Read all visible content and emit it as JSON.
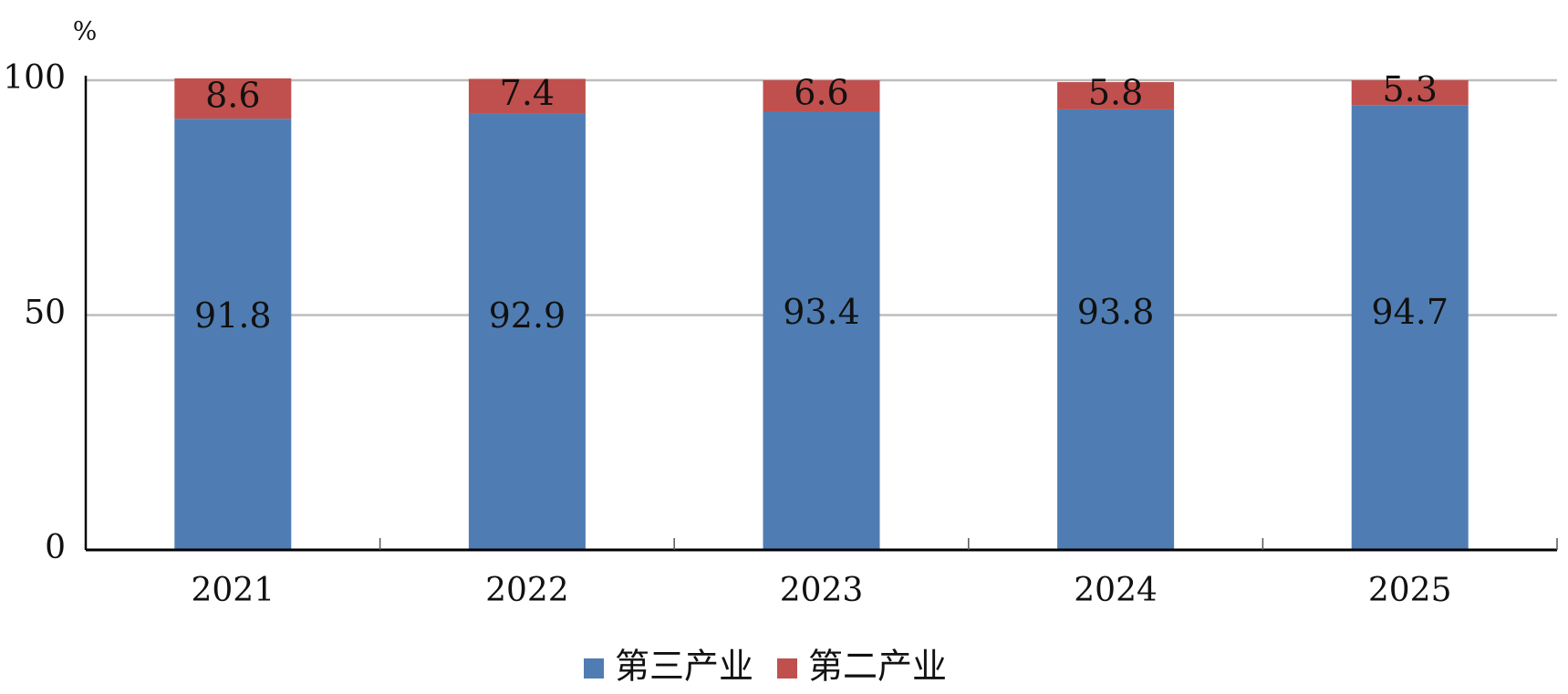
{
  "chart_data": {
    "type": "stacked_bar",
    "unit": "%",
    "categories": [
      "2021",
      "2022",
      "2023",
      "2024",
      "2025"
    ],
    "series": [
      {
        "name": "第三产业",
        "color": "#4f7db3",
        "values": [
          91.8,
          92.9,
          93.4,
          93.8,
          94.7
        ]
      },
      {
        "name": "第二产业",
        "color": "#c0504d",
        "values": [
          8.6,
          7.4,
          6.6,
          5.8,
          5.3
        ]
      }
    ],
    "ylim": [
      0,
      100
    ],
    "yticks": [
      0,
      50,
      100
    ],
    "grid": true,
    "legend": "bottom"
  }
}
